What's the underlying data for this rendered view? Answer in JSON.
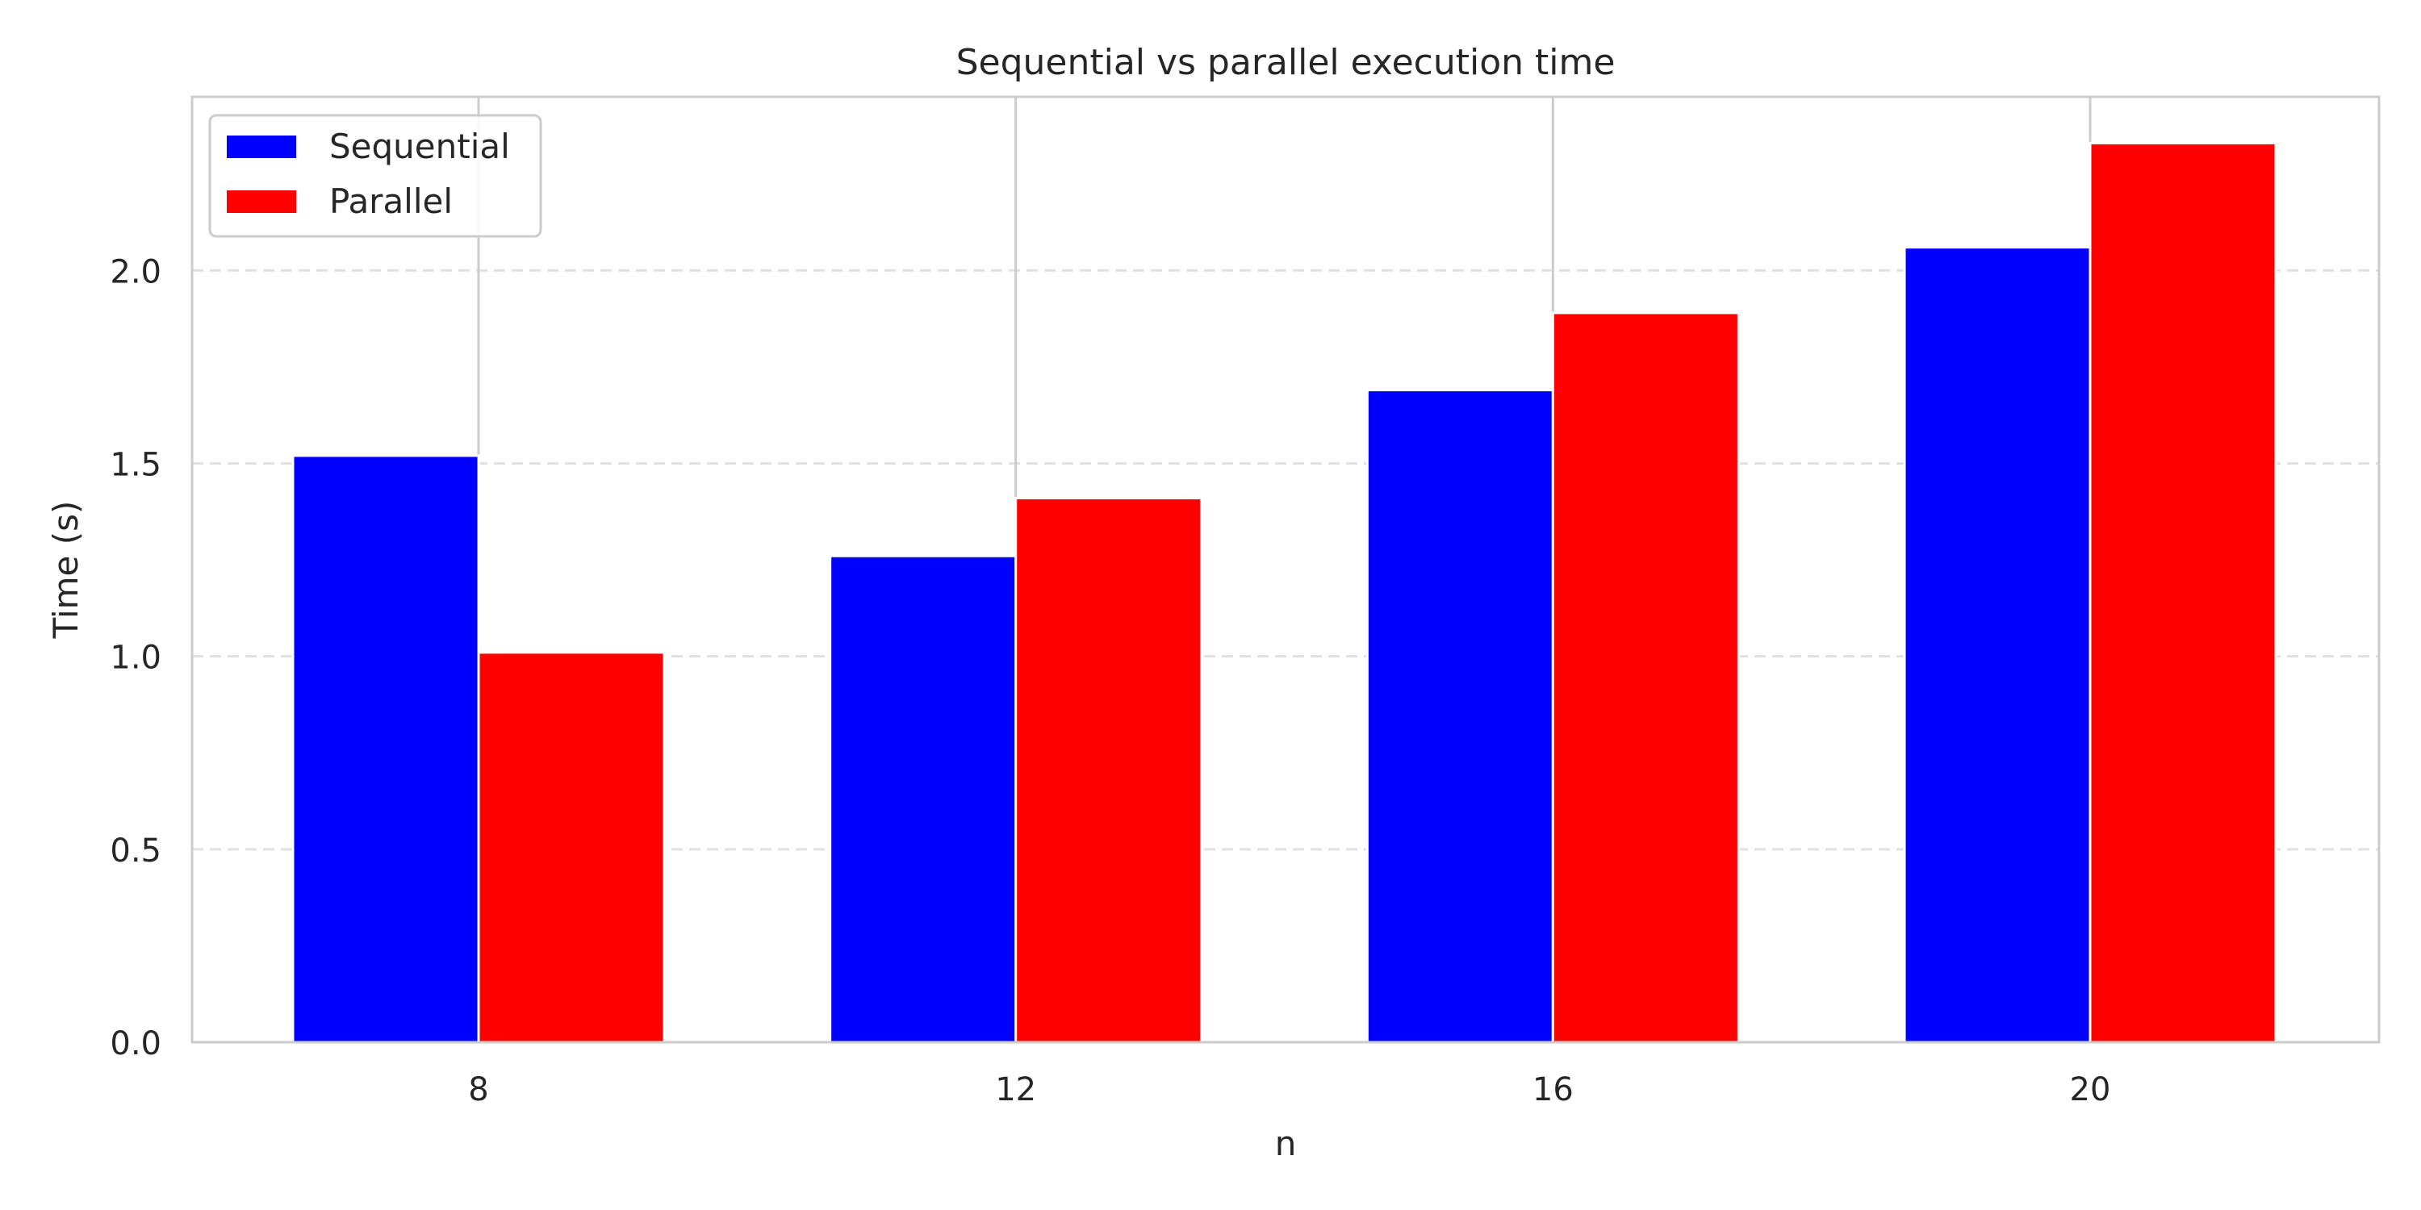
{
  "chart_data": {
    "type": "bar",
    "title": "Sequential vs parallel execution time",
    "xlabel": "n",
    "ylabel": "Time (s)",
    "categories": [
      "8",
      "12",
      "16",
      "20"
    ],
    "series": [
      {
        "name": "Sequential",
        "color": "#0000ff",
        "values": [
          1.52,
          1.26,
          1.69,
          2.06
        ]
      },
      {
        "name": "Parallel",
        "color": "#ff0000",
        "values": [
          1.01,
          1.41,
          1.89,
          2.33
        ]
      }
    ],
    "ylim": [
      0,
      2.45
    ],
    "yticks": [
      "0.0",
      "0.5",
      "1.0",
      "1.5",
      "2.0"
    ],
    "ytick_values": [
      0,
      0.5,
      1.0,
      1.5,
      2.0
    ],
    "grid": "horizontal dashed",
    "legend_position": "top-left"
  }
}
